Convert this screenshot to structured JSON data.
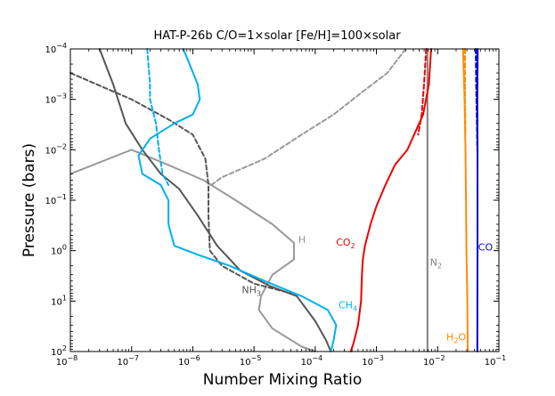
{
  "chart_data": {
    "type": "line",
    "title": "HAT-P-26b   C/O=1×solar   [Fe/H]=100×solar",
    "xlabel": "Number Mixing Ratio",
    "ylabel": "Pressure (bars)",
    "xscale": "log",
    "yscale": "log",
    "xlim": [
      1e-08,
      0.1
    ],
    "ylim": [
      100,
      0.0001
    ],
    "x_ticks": [
      {
        "value": 1e-08,
        "mant": "10",
        "exp": "−8"
      },
      {
        "value": 1e-07,
        "mant": "10",
        "exp": "−7"
      },
      {
        "value": 1e-06,
        "mant": "10",
        "exp": "−6"
      },
      {
        "value": 1e-05,
        "mant": "10",
        "exp": "−5"
      },
      {
        "value": 0.0001,
        "mant": "10",
        "exp": "−4"
      },
      {
        "value": 0.001,
        "mant": "10",
        "exp": "−3"
      },
      {
        "value": 0.01,
        "mant": "10",
        "exp": "−2"
      },
      {
        "value": 0.1,
        "mant": "10",
        "exp": "−1"
      }
    ],
    "y_ticks": [
      {
        "value": 0.0001,
        "mant": "10",
        "exp": "−4"
      },
      {
        "value": 0.001,
        "mant": "10",
        "exp": "−3"
      },
      {
        "value": 0.01,
        "mant": "10",
        "exp": "−2"
      },
      {
        "value": 0.1,
        "mant": "10",
        "exp": "−1"
      },
      {
        "value": 1,
        "mant": "10",
        "exp": "0"
      },
      {
        "value": 10,
        "mant": "10",
        "exp": "1"
      },
      {
        "value": 100,
        "mant": "10",
        "exp": "2"
      }
    ],
    "series": [
      {
        "name": "CO",
        "label": "CO",
        "sub": "",
        "color": "#0000cc",
        "dash": false,
        "label_at": [
          0.046,
          1.0
        ],
        "label_anchor": "start",
        "points": [
          [
            0.045,
            0.0001
          ],
          [
            0.0445,
            0.001
          ],
          [
            0.0448,
            0.01
          ],
          [
            0.0447,
            0.1
          ],
          [
            0.0447,
            1
          ],
          [
            0.0446,
            10
          ],
          [
            0.0445,
            100
          ]
        ]
      },
      {
        "name": "CO dashed",
        "label": "",
        "sub": "",
        "color": "#0000cc",
        "dash": true,
        "points": [
          [
            0.042,
            0.0001
          ],
          [
            0.0425,
            0.0005
          ],
          [
            0.0435,
            0.002
          ],
          [
            0.0445,
            0.01
          ]
        ]
      },
      {
        "name": "H2O",
        "label": "H",
        "sub": "2",
        "tail": "O",
        "color": "#ff8c00",
        "dash": false,
        "label_at": [
          0.029,
          60
        ],
        "label_anchor": "end",
        "points": [
          [
            0.026,
            0.0001
          ],
          [
            0.0275,
            0.001
          ],
          [
            0.0285,
            0.01
          ],
          [
            0.029,
            0.1
          ],
          [
            0.0295,
            1
          ],
          [
            0.0305,
            10
          ],
          [
            0.031,
            100
          ]
        ]
      },
      {
        "name": "H2O dashed",
        "label": "",
        "sub": "",
        "color": "#ff8c00",
        "dash": true,
        "points": [
          [
            0.028,
            0.0001
          ],
          [
            0.028,
            0.0008
          ],
          [
            0.0285,
            0.005
          ]
        ]
      },
      {
        "name": "N2",
        "label": "N",
        "sub": "2",
        "color": "#808080",
        "dash": false,
        "label_at": [
          0.0075,
          2.0
        ],
        "label_anchor": "start",
        "points": [
          [
            0.0068,
            0.0001
          ],
          [
            0.0068,
            0.01
          ],
          [
            0.0068,
            1
          ],
          [
            0.0068,
            100
          ]
        ]
      },
      {
        "name": "CO2",
        "label": "CO",
        "sub": "2",
        "color": "#ee0000",
        "dash": false,
        "label_at": [
          0.00045,
          0.8
        ],
        "label_anchor": "end",
        "points": [
          [
            0.0078,
            0.0001
          ],
          [
            0.0072,
            0.0005
          ],
          [
            0.0058,
            0.002
          ],
          [
            0.0032,
            0.01
          ],
          [
            0.002,
            0.02
          ],
          [
            0.0014,
            0.05
          ],
          [
            0.001,
            0.13
          ],
          [
            0.0008,
            0.3
          ],
          [
            0.00065,
            0.8
          ],
          [
            0.0006,
            1.5
          ],
          [
            0.00058,
            3
          ],
          [
            0.00056,
            10
          ],
          [
            0.0005,
            30
          ],
          [
            0.00042,
            70
          ],
          [
            0.00038,
            100
          ]
        ]
      },
      {
        "name": "CO2 dashed",
        "label": "",
        "sub": "",
        "color": "#ee0000",
        "dash": true,
        "points": [
          [
            0.0065,
            0.0001
          ],
          [
            0.006,
            0.0005
          ],
          [
            0.0055,
            0.002
          ],
          [
            0.0048,
            0.005
          ]
        ]
      },
      {
        "name": "H",
        "label": "H",
        "sub": "",
        "color": "#999999",
        "dash": false,
        "label_at": [
          5.3e-05,
          0.7
        ],
        "label_anchor": "start",
        "points": [
          [
            1e-08,
            0.03
          ],
          [
            1e-07,
            0.01
          ],
          [
            4e-07,
            0.02
          ],
          [
            1.5e-06,
            0.04
          ],
          [
            5e-06,
            0.1
          ],
          [
            2e-05,
            0.3
          ],
          [
            4.5e-05,
            0.7
          ],
          [
            4.5e-05,
            1.5
          ],
          [
            2e-05,
            3
          ],
          [
            1.3e-05,
            8
          ],
          [
            1.2e-05,
            15
          ],
          [
            2e-05,
            35
          ],
          [
            6e-05,
            80
          ],
          [
            0.0001,
            100
          ]
        ]
      },
      {
        "name": "H dashed",
        "label": "",
        "sub": "",
        "color": "#999999",
        "dash": true,
        "points": [
          [
            2e-06,
            0.05
          ],
          [
            3e-06,
            0.035
          ],
          [
            1.5e-05,
            0.015
          ],
          [
            6e-05,
            0.005
          ],
          [
            0.0002,
            0.002
          ],
          [
            0.0006,
            0.0007
          ],
          [
            0.0015,
            0.0003
          ],
          [
            0.003,
            0.0001
          ]
        ]
      },
      {
        "name": "NH3",
        "label": "NH",
        "sub": "3",
        "color": "#555555",
        "dash": false,
        "label_at": [
          1.3e-05,
          7
        ],
        "label_anchor": "end",
        "points": [
          [
            3e-08,
            0.0001
          ],
          [
            5e-08,
            0.0005
          ],
          [
            8e-08,
            0.003
          ],
          [
            1.5e-07,
            0.01
          ],
          [
            3e-07,
            0.03
          ],
          [
            6e-07,
            0.06
          ],
          [
            1.2e-06,
            0.2
          ],
          [
            2.5e-06,
            0.8
          ],
          [
            6e-06,
            2.5
          ],
          [
            1.8e-05,
            5
          ],
          [
            5e-05,
            8
          ],
          [
            0.0001,
            25
          ],
          [
            0.00015,
            60
          ],
          [
            0.00018,
            100
          ]
        ]
      },
      {
        "name": "NH3 dashed",
        "label": "",
        "sub": "",
        "color": "#555555",
        "dash": true,
        "points": [
          [
            1e-08,
            0.0003
          ],
          [
            1e-07,
            0.001
          ],
          [
            4e-07,
            0.0025
          ],
          [
            1e-06,
            0.005
          ],
          [
            1.6e-06,
            0.015
          ],
          [
            1.8e-06,
            0.05
          ],
          [
            1.8e-06,
            0.2
          ],
          [
            1.9e-06,
            1
          ],
          [
            3e-06,
            2
          ],
          [
            1e-05,
            4.5
          ],
          [
            4e-05,
            7
          ]
        ]
      },
      {
        "name": "CH4",
        "label": "CH",
        "sub": "4",
        "color": "#00b0f0",
        "dash": false,
        "label_at": [
          0.00024,
          14
        ],
        "label_anchor": "start",
        "points": [
          [
            7e-07,
            0.0001
          ],
          [
            1.2e-06,
            0.0005
          ],
          [
            1.3e-06,
            0.001
          ],
          [
            1e-06,
            0.002
          ],
          [
            5e-07,
            0.003
          ],
          [
            2e-07,
            0.006
          ],
          [
            1.3e-07,
            0.013
          ],
          [
            1.5e-07,
            0.03
          ],
          [
            3e-07,
            0.05
          ],
          [
            4e-07,
            0.1
          ],
          [
            4e-07,
            0.3
          ],
          [
            5e-07,
            0.8
          ],
          [
            1.2e-06,
            1.2
          ],
          [
            4e-06,
            2
          ],
          [
            1.5e-05,
            4
          ],
          [
            6e-05,
            8
          ],
          [
            0.00016,
            15
          ],
          [
            0.00022,
            30
          ],
          [
            0.0002,
            60
          ],
          [
            0.00018,
            100
          ]
        ]
      },
      {
        "name": "CH4 dashed",
        "label": "",
        "sub": "",
        "color": "#00b0f0",
        "dash": true,
        "points": [
          [
            1.8e-07,
            0.0001
          ],
          [
            2e-07,
            0.0005
          ],
          [
            2e-07,
            0.001
          ],
          [
            2.5e-07,
            0.003
          ],
          [
            2.8e-07,
            0.01
          ],
          [
            3.2e-07,
            0.03
          ],
          [
            4e-07,
            0.05
          ]
        ]
      }
    ]
  }
}
